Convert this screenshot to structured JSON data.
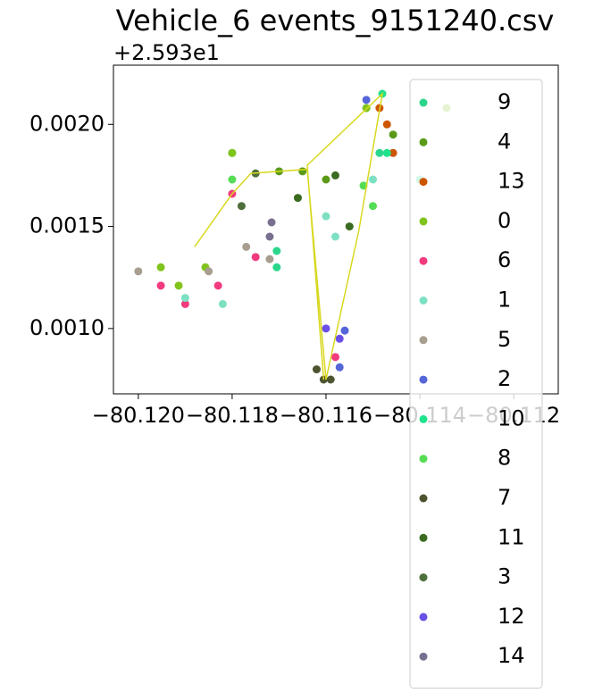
{
  "chart_data": {
    "type": "scatter",
    "title": "Vehicle_6 events_9151240.csv",
    "y_offset_label": "+2.593e1",
    "xlim": [
      -80.12053,
      -80.11105
    ],
    "ylim": [
      0.00068,
      0.00229
    ],
    "xticks": [
      {
        "value": -80.12,
        "label": "−80.120"
      },
      {
        "value": -80.118,
        "label": "−80.118"
      },
      {
        "value": -80.116,
        "label": "−80.116"
      },
      {
        "value": -80.114,
        "label": "−80.114"
      },
      {
        "value": -80.112,
        "label": "−80.112"
      }
    ],
    "yticks": [
      {
        "value": 0.001,
        "label": "0.0010"
      },
      {
        "value": 0.0015,
        "label": "0.0015"
      },
      {
        "value": 0.002,
        "label": "0.0020"
      }
    ],
    "legend": "upper right",
    "line": {
      "color": "#d8d820",
      "x": [
        -80.1188,
        -80.118,
        -80.1176,
        -80.1164,
        -80.116,
        -80.1153,
        -80.1148,
        -80.1164,
        -80.11605
      ],
      "values": [
        0.0014,
        0.00166,
        0.00176,
        0.00178,
        0.00075,
        0.00148,
        0.00215,
        0.0018,
        0.00075
      ]
    },
    "series": [
      {
        "name": "9",
        "color": "#2bd68b",
        "x": [
          -80.11705,
          -80.11705,
          -80.118,
          -80.11514,
          -80.11486
        ],
        "values": [
          0.0013,
          0.00138,
          0.00186,
          0.00208,
          0.00186
        ]
      },
      {
        "name": "4",
        "color": "#5a9a18",
        "x": [
          -80.116,
          -80.1165,
          -80.117,
          -80.11457
        ],
        "values": [
          0.00173,
          0.00177,
          0.00177,
          0.00195
        ]
      },
      {
        "name": "13",
        "color": "#cc5500",
        "x": [
          -80.11486,
          -80.11457,
          -80.1147
        ],
        "values": [
          0.00208,
          0.00186,
          0.002
        ]
      },
      {
        "name": "0",
        "color": "#80c41c",
        "x": [
          -80.11952,
          -80.11914,
          -80.11857,
          -80.118,
          -80.11514,
          -80.11343
        ],
        "values": [
          0.0013,
          0.00121,
          0.0013,
          0.00186,
          0.00208,
          0.00208
        ]
      },
      {
        "name": "6",
        "color": "#f23a7f",
        "x": [
          -80.11952,
          -80.119,
          -80.1183,
          -80.1175,
          -80.1158,
          -80.118
        ],
        "values": [
          0.00121,
          0.00112,
          0.00121,
          0.00135,
          0.00086,
          0.00166
        ]
      },
      {
        "name": "1",
        "color": "#7ee0c2",
        "x": [
          -80.119,
          -80.1182,
          -80.1158,
          -80.116,
          -80.115
        ],
        "values": [
          0.00115,
          0.00112,
          0.00145,
          0.00155,
          0.00173
        ]
      },
      {
        "name": "5",
        "color": "#a89e90",
        "x": [
          -80.12,
          -80.1185,
          -80.1177,
          -80.1172
        ],
        "values": [
          0.00128,
          0.00128,
          0.0014,
          0.00134
        ]
      },
      {
        "name": "2",
        "color": "#5566d8",
        "x": [
          -80.11571,
          -80.1156,
          -80.11514
        ],
        "values": [
          0.00081,
          0.00099,
          0.00212
        ]
      },
      {
        "name": "10",
        "color": "#20e28c",
        "x": [
          -80.1148,
          -80.1147,
          -80.114
        ],
        "values": [
          0.00215,
          0.00186,
          0.00173
        ]
      },
      {
        "name": "8",
        "color": "#55dd55",
        "x": [
          -80.118,
          -80.115,
          -80.1152
        ],
        "values": [
          0.00173,
          0.0016,
          0.0017
        ]
      },
      {
        "name": "7",
        "color": "#4d5530",
        "x": [
          -80.11605,
          -80.1159,
          -80.1162
        ],
        "values": [
          0.00075,
          0.00075,
          0.0008
        ]
      },
      {
        "name": "11",
        "color": "#3a6b20",
        "x": [
          -80.1166,
          -80.1155,
          -80.1158
        ],
        "values": [
          0.00164,
          0.0015,
          0.00175
        ]
      },
      {
        "name": "3",
        "color": "#4e6e3c",
        "x": [
          -80.1175,
          -80.1178
        ],
        "values": [
          0.00176,
          0.0016
        ]
      },
      {
        "name": "12",
        "color": "#6a50e6",
        "x": [
          -80.116,
          -80.11571
        ],
        "values": [
          0.001,
          0.00095
        ]
      },
      {
        "name": "14",
        "color": "#79708f",
        "x": [
          -80.11716,
          -80.1172
        ],
        "values": [
          0.00152,
          0.00145
        ]
      }
    ]
  }
}
